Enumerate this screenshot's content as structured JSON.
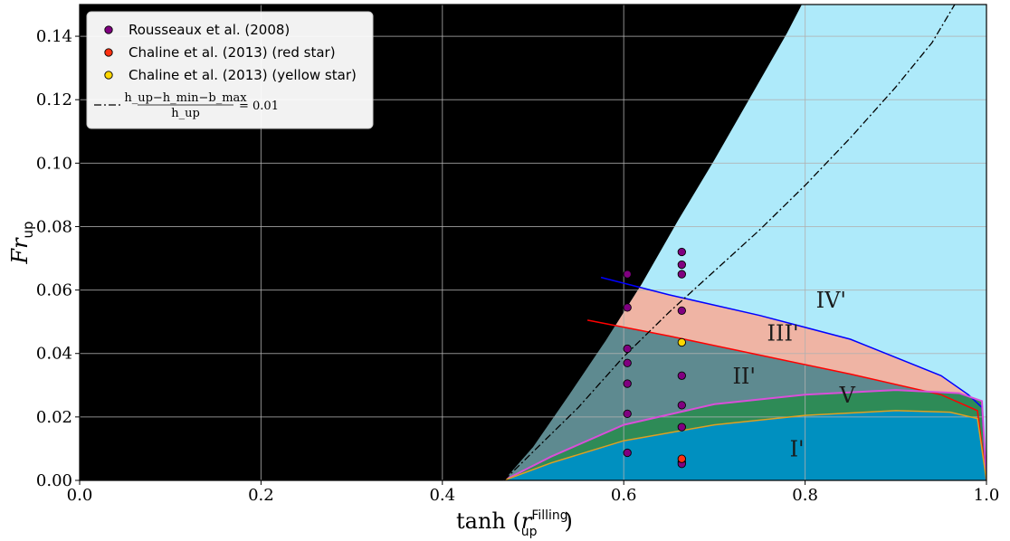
{
  "chart_data": {
    "type": "scatter",
    "xlabel": "tanh (r_up^Filling)",
    "xlabel_parts": {
      "func": "tanh",
      "var": "r",
      "sub": "up",
      "sup": "Filling"
    },
    "ylabel": "Fr_up",
    "ylabel_parts": {
      "base": "Fr",
      "sub": "up"
    },
    "xlim": [
      0.0,
      1.0
    ],
    "ylim": [
      0.0,
      0.15
    ],
    "xticks": [
      "0.0",
      "0.2",
      "0.4",
      "0.6",
      "0.8",
      "1.0"
    ],
    "yticks": [
      "0.00",
      "0.02",
      "0.04",
      "0.06",
      "0.08",
      "0.10",
      "0.12",
      "0.14"
    ],
    "grid": true,
    "legend_position": "top-left",
    "colors": {
      "black_region": "#000000",
      "sky": "#aeeafa",
      "region_I": "#0090c0",
      "region_V": "#2e8b57",
      "region_II": "#5e8a90",
      "region_III": "#efb4a4",
      "region_IV_line": "#0000ff",
      "region_III_line": "#ff0000",
      "region_II_line": "#d94fd9",
      "region_I_line": "#e0a020"
    },
    "boundaries": {
      "black_boundary": {
        "x": [
          0.468,
          0.5,
          0.54,
          0.58,
          0.62,
          0.66,
          0.7,
          0.74,
          0.78,
          0.8
        ],
        "y": [
          0.0,
          0.0105,
          0.027,
          0.044,
          0.062,
          0.082,
          0.101,
          0.121,
          0.141,
          0.152
        ]
      },
      "IV_line": {
        "x": [
          0.575,
          0.65,
          0.75,
          0.85,
          0.95,
          0.98,
          0.995,
          1.0
        ],
        "y": [
          0.064,
          0.0585,
          0.052,
          0.0445,
          0.033,
          0.027,
          0.023,
          0.0
        ],
        "label": "IV'"
      },
      "III_line": {
        "x": [
          0.56,
          0.65,
          0.75,
          0.85,
          0.95,
          0.99,
          1.0
        ],
        "y": [
          0.0505,
          0.0455,
          0.0395,
          0.0335,
          0.027,
          0.022,
          0.0
        ],
        "label": "III'"
      },
      "II_line": {
        "x": [
          0.468,
          0.52,
          0.6,
          0.7,
          0.8,
          0.9,
          0.97,
          0.995,
          1.0
        ],
        "y": [
          0.0,
          0.0075,
          0.0175,
          0.024,
          0.027,
          0.0285,
          0.0275,
          0.025,
          0.0
        ],
        "label": "II'"
      },
      "I_line": {
        "x": [
          0.468,
          0.52,
          0.6,
          0.7,
          0.8,
          0.9,
          0.96,
          0.99,
          1.0
        ],
        "y": [
          0.0,
          0.0055,
          0.0125,
          0.0175,
          0.0205,
          0.022,
          0.0215,
          0.0195,
          0.0
        ],
        "label": "I'"
      },
      "dashdot": {
        "x": [
          0.468,
          0.5,
          0.55,
          0.6,
          0.65,
          0.7,
          0.75,
          0.8,
          0.85,
          0.9,
          0.94,
          0.965
        ],
        "y": [
          0.0,
          0.009,
          0.023,
          0.039,
          0.053,
          0.066,
          0.079,
          0.093,
          0.108,
          0.124,
          0.138,
          0.15
        ]
      }
    },
    "region_labels": [
      {
        "text": "IV'",
        "x": 0.812,
        "y": 0.0545
      },
      {
        "text": "III'",
        "x": 0.758,
        "y": 0.044
      },
      {
        "text": "II'",
        "x": 0.72,
        "y": 0.0305
      },
      {
        "text": "V",
        "x": 0.838,
        "y": 0.0245
      },
      {
        "text": "I'",
        "x": 0.783,
        "y": 0.0075
      }
    ],
    "series": [
      {
        "name": "Rousseaux et al. (2008)",
        "color": "#800080",
        "x": [
          0.604,
          0.604,
          0.604,
          0.604,
          0.604,
          0.604,
          0.604,
          0.664,
          0.664,
          0.664,
          0.664,
          0.664,
          0.664,
          0.664,
          0.664,
          0.664
        ],
        "y": [
          0.065,
          0.0545,
          0.0415,
          0.037,
          0.0305,
          0.021,
          0.0087,
          0.072,
          0.068,
          0.065,
          0.0535,
          0.033,
          0.0237,
          0.0168,
          0.0058,
          0.0052
        ]
      },
      {
        "name": "Chaline et al. (2013) (red star)",
        "color": "#ff3010",
        "x": [
          0.664
        ],
        "y": [
          0.0068
        ]
      },
      {
        "name": "Chaline et al. (2013) (yellow star)",
        "color": "#ffd700",
        "x": [
          0.664
        ],
        "y": [
          0.0435
        ]
      }
    ],
    "reference_line": {
      "name": "(h_up − h_min − b_max) / h_up = 0.01",
      "numerator": "h_up−h_min−b_max",
      "denominator": "h_up",
      "rhs": "= 0.01"
    }
  }
}
